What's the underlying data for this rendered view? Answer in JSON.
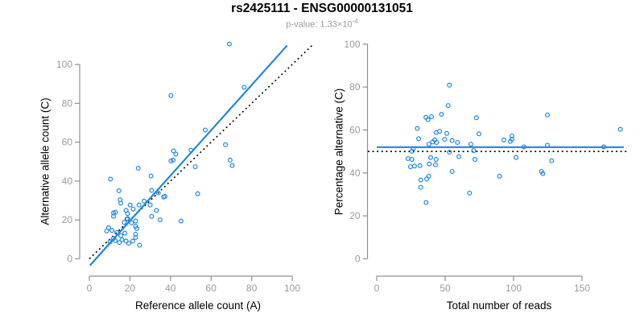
{
  "header": {
    "title": "rs2425111 - ENSG00000131051",
    "subtitle_prefix": "p-value: 1.33×10",
    "subtitle_exponent": "-4"
  },
  "colors": {
    "accent_blue": "#1e86e5",
    "dotted_black": "#000000",
    "axis_gray": "#8f8f8f",
    "tick_label_gray": "#9a9a9a"
  },
  "chart_data": [
    {
      "id": "allele-count-scatter",
      "type": "scatter",
      "title": "rs2425111 - ENSG00000131051",
      "xlabel": "Reference allele count (A)",
      "ylabel": "Alternative allele count (C)",
      "x_ticks": [
        0,
        20,
        40,
        60,
        80,
        100
      ],
      "y_ticks": [
        0,
        20,
        40,
        60,
        80,
        100
      ],
      "xlim": [
        -4,
        111
      ],
      "ylim": [
        -4.5,
        115
      ],
      "grid": false,
      "legend": null,
      "points": [
        [
          69,
          110.5
        ],
        [
          76.3,
          88.3
        ],
        [
          40.2,
          84
        ],
        [
          57.1,
          66.3
        ],
        [
          67.1,
          58.7
        ],
        [
          69.4,
          50.8
        ],
        [
          70.4,
          48
        ],
        [
          50.1,
          55.9
        ],
        [
          52.2,
          47.4
        ],
        [
          41.5,
          55.5
        ],
        [
          42.6,
          53.9
        ],
        [
          41.3,
          50.8
        ],
        [
          40.2,
          50.4
        ],
        [
          24.1,
          46.6
        ],
        [
          30.4,
          42.6
        ],
        [
          10.4,
          41
        ],
        [
          14.6,
          35
        ],
        [
          15.2,
          30.4
        ],
        [
          30.7,
          35.2
        ],
        [
          34,
          33.9
        ],
        [
          36.6,
          31.8
        ],
        [
          37.3,
          32.1
        ],
        [
          53.4,
          33.5
        ],
        [
          45.2,
          19.4
        ],
        [
          34.9,
          20.1
        ],
        [
          30,
          27.7
        ],
        [
          33.1,
          24.9
        ],
        [
          30.7,
          21.8
        ],
        [
          27,
          29.7
        ],
        [
          24.5,
          27.7
        ],
        [
          21.6,
          25.6
        ],
        [
          15.5,
          28.6
        ],
        [
          20.1,
          27.7
        ],
        [
          18.1,
          24.9
        ],
        [
          18.8,
          23.3
        ],
        [
          12.8,
          24
        ],
        [
          11.9,
          23.6
        ],
        [
          11.9,
          21.9
        ],
        [
          18.5,
          20.4
        ],
        [
          18.9,
          20.7
        ],
        [
          17.2,
          18.7
        ],
        [
          20.8,
          18.5
        ],
        [
          22.8,
          19.4
        ],
        [
          22.8,
          16.7
        ],
        [
          23.4,
          15.6
        ],
        [
          9.5,
          16
        ],
        [
          11.1,
          14.6
        ],
        [
          8.5,
          14.3
        ],
        [
          13.5,
          13.5
        ],
        [
          17.5,
          13.2
        ],
        [
          15.5,
          11.9
        ],
        [
          22.8,
          12.7
        ],
        [
          22.8,
          11
        ],
        [
          11.9,
          10.5
        ],
        [
          12.8,
          9.4
        ],
        [
          10.2,
          8.8
        ],
        [
          14.8,
          8.4
        ],
        [
          18.1,
          9.1
        ],
        [
          19.4,
          8
        ],
        [
          21.4,
          9.1
        ],
        [
          24.7,
          7
        ],
        [
          16.1,
          9.8
        ]
      ],
      "lines": [
        {
          "name": "regression-line",
          "style": "solid",
          "color_key": "accent_blue",
          "x1": 0.3,
          "y1": -3.4,
          "x2": 97.5,
          "y2": 109.8
        },
        {
          "name": "identity-line",
          "style": "dotted",
          "color_key": "dotted_black",
          "x1": 0,
          "y1": 0,
          "x2": 110.5,
          "y2": 110.5
        }
      ]
    },
    {
      "id": "percentage-scatter",
      "type": "scatter",
      "title": "rs2425111 - ENSG00000131051",
      "xlabel": "Total number of reads",
      "ylabel": "Percentage alternative (C)",
      "x_ticks": [
        0,
        50,
        100,
        150
      ],
      "y_ticks": [
        0,
        20,
        40,
        60,
        80,
        100
      ],
      "xlim": [
        -7,
        185
      ],
      "ylim": [
        -4,
        104
      ],
      "grid": false,
      "legend": null,
      "points": [
        [
          53.1,
          80.9
        ],
        [
          52.2,
          71.4
        ],
        [
          47.3,
          67.3
        ],
        [
          124.7,
          67
        ],
        [
          35.9,
          65.9
        ],
        [
          37.5,
          64.8
        ],
        [
          40,
          66.2
        ],
        [
          72.8,
          65.7
        ],
        [
          29.6,
          60.7
        ],
        [
          74.7,
          58.2
        ],
        [
          43.4,
          58.8
        ],
        [
          45.9,
          59.4
        ],
        [
          51.2,
          58.4
        ],
        [
          178,
          60.3
        ],
        [
          42.4,
          55.4
        ],
        [
          40.8,
          54.4
        ],
        [
          43.7,
          54.2
        ],
        [
          49.6,
          55.7
        ],
        [
          30.6,
          55.9
        ],
        [
          55.1,
          55.1
        ],
        [
          59,
          54.2
        ],
        [
          38.1,
          53.4
        ],
        [
          68.8,
          53.4
        ],
        [
          92.9,
          55.4
        ],
        [
          97.6,
          54.7
        ],
        [
          98.8,
          57.2
        ],
        [
          98.8,
          55.7
        ],
        [
          107.6,
          52.1
        ],
        [
          124.7,
          52.9
        ],
        [
          165.9,
          52.1
        ],
        [
          26.7,
          51.3
        ],
        [
          25.7,
          50.1
        ],
        [
          53.1,
          49.7
        ],
        [
          70.8,
          50.4
        ],
        [
          60,
          47.6
        ],
        [
          101.8,
          47.2
        ],
        [
          22.8,
          46.7
        ],
        [
          25.7,
          46.3
        ],
        [
          39.4,
          47.2
        ],
        [
          43.4,
          46.3
        ],
        [
          71.8,
          46.3
        ],
        [
          127.8,
          45.7
        ],
        [
          24.7,
          42.9
        ],
        [
          27.6,
          43.2
        ],
        [
          31.6,
          43.4
        ],
        [
          38.4,
          44.2
        ],
        [
          42.9,
          43.8
        ],
        [
          55.1,
          40.7
        ],
        [
          120.4,
          40.7
        ],
        [
          121.4,
          39.7
        ],
        [
          89.8,
          38.5
        ],
        [
          38,
          38.5
        ],
        [
          36.5,
          37.2
        ],
        [
          32.2,
          36.7
        ],
        [
          32.2,
          33.3
        ],
        [
          67.8,
          30.6
        ],
        [
          36.1,
          26.2
        ]
      ],
      "lines": [
        {
          "name": "mean-percentage-line",
          "style": "solid",
          "color_key": "accent_blue",
          "x1": 0,
          "y1": 52,
          "x2": 180.5,
          "y2": 52
        },
        {
          "name": "expected-50pct-line",
          "style": "dotted",
          "color_key": "dotted_black",
          "x1": -6.5,
          "y1": 50,
          "x2": 184,
          "y2": 50
        }
      ]
    }
  ]
}
